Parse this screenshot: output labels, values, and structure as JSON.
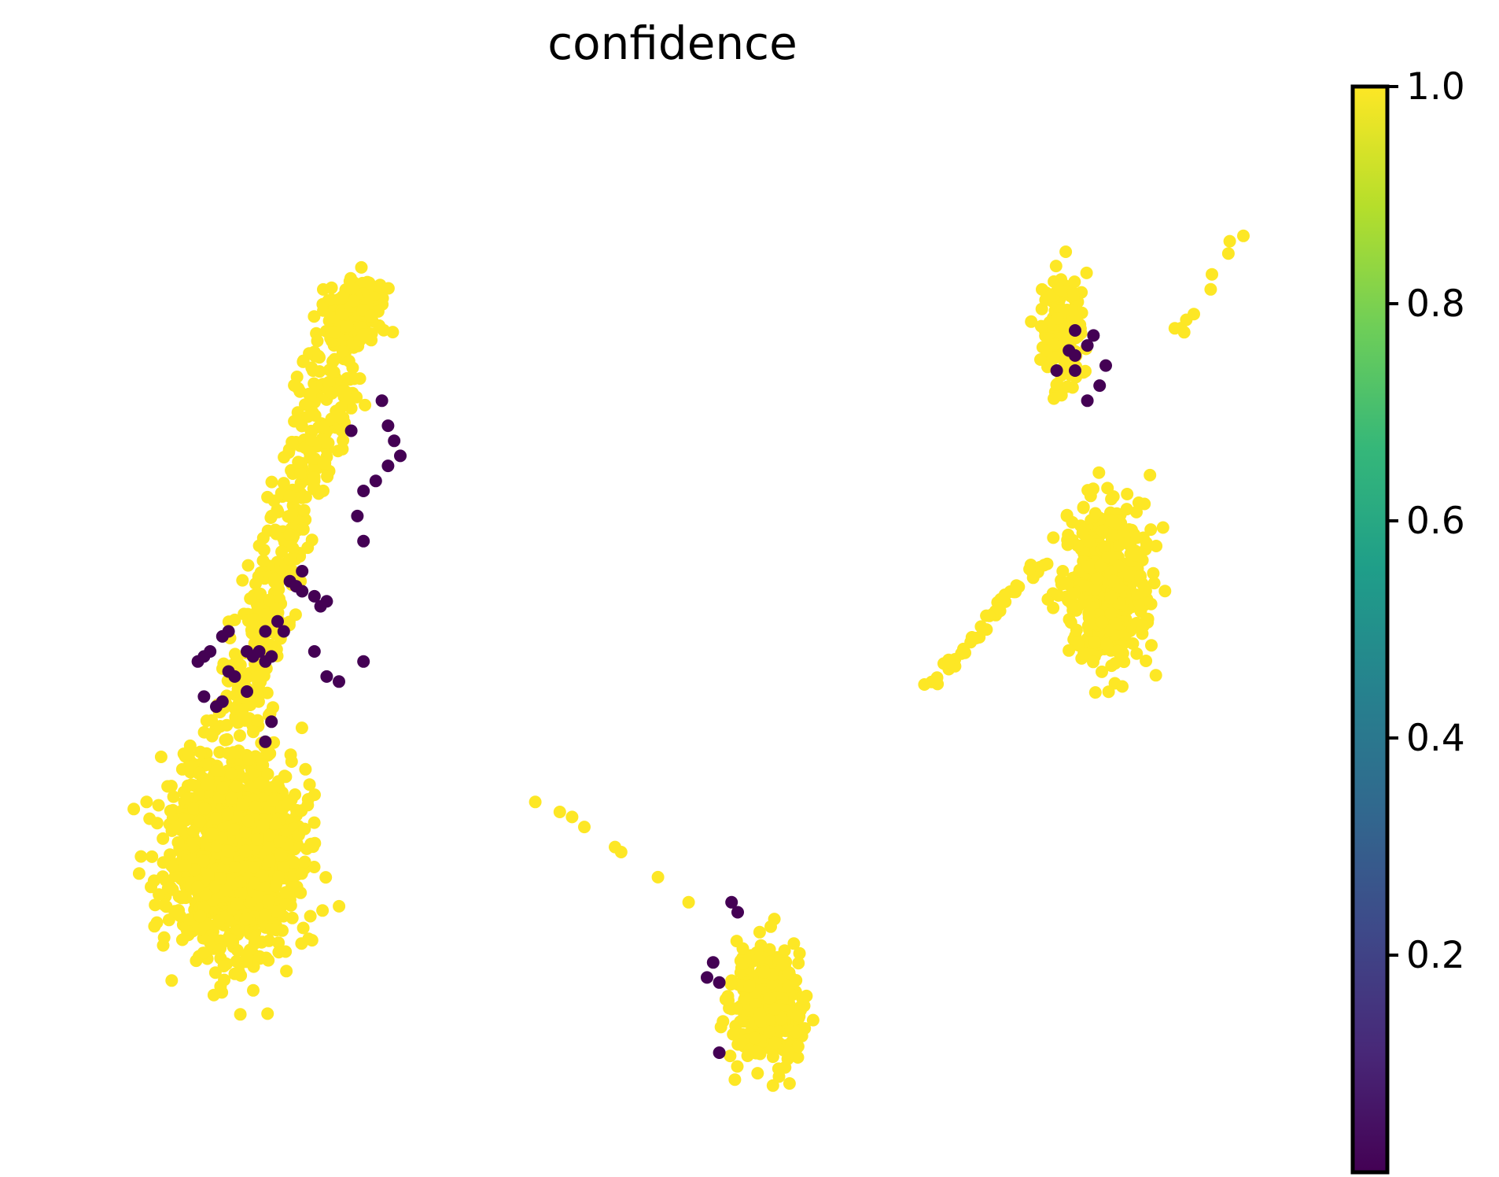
{
  "chart_data": {
    "type": "scatter",
    "title": "confidence",
    "xlabel": "",
    "ylabel": "",
    "axes_visible": false,
    "grid": false,
    "colormap": "viridis",
    "colormap_stops": [
      "#440154",
      "#482878",
      "#3e4989",
      "#31688e",
      "#26828e",
      "#1f9e89",
      "#35b779",
      "#6ece58",
      "#b5de2b",
      "#fde725"
    ],
    "color_range": [
      0.0,
      1.0
    ],
    "colorbar": {
      "placement": "right",
      "ticks": [
        0.2,
        0.4,
        0.6,
        0.8,
        1.0
      ],
      "tick_labels": [
        "0.2",
        "0.4",
        "0.6",
        "0.8",
        "1.0"
      ]
    },
    "x_range": [
      0,
      100
    ],
    "y_range": [
      0,
      100
    ],
    "series": [
      {
        "cluster": "large-left",
        "shape": "blob",
        "cx": 14.0,
        "cy": 28.0,
        "rx": 9.0,
        "ry": 17.0,
        "count": 1100,
        "value": 1.0
      },
      {
        "cluster": "left-upper-arm",
        "shape": "segment",
        "from": [
          14.0,
          40.0
        ],
        "to": [
          24.0,
          85.0
        ],
        "width": 5.0,
        "count": 420,
        "value": 1.0
      },
      {
        "cluster": "left-top-knob",
        "shape": "blob",
        "cx": 24.0,
        "cy": 82.0,
        "rx": 3.2,
        "ry": 5.0,
        "count": 110,
        "value": 1.0
      },
      {
        "cluster": "right-upper",
        "shape": "blob",
        "cx": 81.5,
        "cy": 80.0,
        "rx": 2.8,
        "ry": 9.5,
        "count": 170,
        "value": 1.0
      },
      {
        "cluster": "right-lower",
        "shape": "blob",
        "cx": 85.0,
        "cy": 55.0,
        "rx": 5.5,
        "ry": 14.0,
        "count": 460,
        "value": 1.0
      },
      {
        "cluster": "right-trail",
        "shape": "segment",
        "from": [
          70.0,
          44.0
        ],
        "to": [
          80.0,
          57.0
        ],
        "width": 1.4,
        "count": 45,
        "value": 1.0
      },
      {
        "cluster": "right-top-trail",
        "shape": "segment",
        "from": [
          91.0,
          80.0
        ],
        "to": [
          96.0,
          90.0
        ],
        "width": 1.0,
        "count": 10,
        "value": 1.0
      },
      {
        "cluster": "bottom-center",
        "shape": "blob",
        "cx": 57.5,
        "cy": 13.0,
        "rx": 4.5,
        "ry": 10.0,
        "count": 330,
        "value": 1.0
      },
      {
        "cluster": "bottom-trail",
        "shape": "points",
        "points": [
          [
            38.5,
            33.0
          ],
          [
            40.5,
            32.0
          ],
          [
            41.5,
            31.5
          ],
          [
            42.5,
            30.5
          ],
          [
            45.0,
            28.5
          ],
          [
            45.5,
            28.0
          ],
          [
            48.5,
            25.5
          ],
          [
            51.0,
            23.0
          ]
        ],
        "value": 1.0
      },
      {
        "cluster": "low-confidence",
        "shape": "points",
        "points": [
          [
            26.0,
            73.0
          ],
          [
            23.5,
            70.0
          ],
          [
            26.5,
            70.5
          ],
          [
            27.0,
            69.0
          ],
          [
            27.5,
            67.5
          ],
          [
            26.5,
            66.5
          ],
          [
            25.5,
            65.0
          ],
          [
            24.5,
            64.0
          ],
          [
            24.0,
            61.5
          ],
          [
            24.5,
            59.0
          ],
          [
            18.5,
            55.0
          ],
          [
            19.0,
            54.5
          ],
          [
            19.5,
            54.0
          ],
          [
            20.5,
            53.5
          ],
          [
            21.0,
            52.5
          ],
          [
            21.5,
            53.0
          ],
          [
            15.0,
            48.0
          ],
          [
            15.5,
            47.5
          ],
          [
            16.0,
            48.0
          ],
          [
            16.5,
            47.0
          ],
          [
            17.0,
            47.5
          ],
          [
            11.0,
            47.0
          ],
          [
            11.5,
            47.5
          ],
          [
            12.0,
            48.0
          ],
          [
            13.0,
            49.5
          ],
          [
            13.5,
            50.0
          ],
          [
            14.0,
            45.5
          ],
          [
            15.0,
            44.0
          ],
          [
            11.5,
            43.5
          ],
          [
            12.5,
            42.5
          ],
          [
            13.0,
            43.0
          ],
          [
            13.5,
            46.0
          ],
          [
            16.5,
            50.0
          ],
          [
            17.5,
            51.0
          ],
          [
            18.0,
            50.0
          ],
          [
            20.5,
            48.0
          ],
          [
            21.5,
            45.5
          ],
          [
            22.5,
            45.0
          ],
          [
            24.5,
            47.0
          ],
          [
            19.5,
            56.0
          ],
          [
            17.0,
            41.0
          ],
          [
            16.5,
            39.0
          ],
          [
            82.5,
            80.0
          ],
          [
            82.0,
            78.0
          ],
          [
            82.5,
            77.5
          ],
          [
            83.5,
            78.5
          ],
          [
            84.0,
            79.5
          ],
          [
            81.0,
            76.0
          ],
          [
            82.5,
            76.0
          ],
          [
            85.0,
            76.5
          ],
          [
            84.5,
            74.5
          ],
          [
            83.5,
            73.0
          ],
          [
            54.5,
            23.0
          ],
          [
            55.0,
            22.0
          ],
          [
            53.0,
            17.0
          ],
          [
            52.5,
            15.5
          ],
          [
            53.5,
            15.0
          ],
          [
            53.5,
            8.0
          ]
        ],
        "value": 0.0
      }
    ]
  }
}
